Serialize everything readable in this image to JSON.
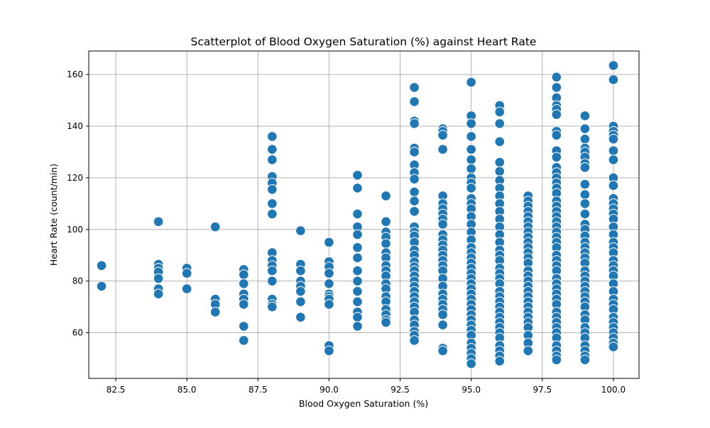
{
  "chart_data": {
    "type": "scatter",
    "title": "Scatterplot of Blood Oxygen Saturation (%) against Heart Rate",
    "xlabel": "Blood Oxygen Saturation (%)",
    "ylabel": "Heart Rate (count/min)",
    "xlim": [
      81.55,
      100.9
    ],
    "ylim": [
      42.3,
      169.1
    ],
    "grid": true,
    "x_ticks": [
      82.5,
      85.0,
      87.5,
      90.0,
      92.5,
      95.0,
      97.5,
      100.0
    ],
    "x_tick_labels": [
      "82.5",
      "85.0",
      "87.5",
      "90.0",
      "92.5",
      "95.0",
      "97.5",
      "100.0"
    ],
    "y_ticks": [
      60,
      80,
      100,
      120,
      140,
      160
    ],
    "y_tick_labels": [
      "60",
      "80",
      "100",
      "120",
      "140",
      "160"
    ],
    "marker_color": "#1f77b4",
    "marker_edge_color": "#ffffff",
    "points": [
      {
        "x": 82,
        "y": 86
      },
      {
        "x": 82,
        "y": 78
      },
      {
        "x": 84,
        "y": 103
      },
      {
        "x": 84,
        "y": 86.5
      },
      {
        "x": 84,
        "y": 85
      },
      {
        "x": 84,
        "y": 83.5
      },
      {
        "x": 84,
        "y": 81
      },
      {
        "x": 84,
        "y": 77
      },
      {
        "x": 84,
        "y": 75
      },
      {
        "x": 85,
        "y": 85
      },
      {
        "x": 85,
        "y": 83
      },
      {
        "x": 85,
        "y": 77
      },
      {
        "x": 86,
        "y": 101
      },
      {
        "x": 86,
        "y": 73
      },
      {
        "x": 86,
        "y": 71
      },
      {
        "x": 86,
        "y": 68
      },
      {
        "x": 87,
        "y": 84.5
      },
      {
        "x": 87,
        "y": 82.5
      },
      {
        "x": 87,
        "y": 79
      },
      {
        "x": 87,
        "y": 75
      },
      {
        "x": 87,
        "y": 73
      },
      {
        "x": 87,
        "y": 71
      },
      {
        "x": 87,
        "y": 62.5
      },
      {
        "x": 87,
        "y": 57
      },
      {
        "x": 88,
        "y": 136
      },
      {
        "x": 88,
        "y": 131
      },
      {
        "x": 88,
        "y": 127
      },
      {
        "x": 88,
        "y": 120.5
      },
      {
        "x": 88,
        "y": 118
      },
      {
        "x": 88,
        "y": 115.5
      },
      {
        "x": 88,
        "y": 110
      },
      {
        "x": 88,
        "y": 106
      },
      {
        "x": 88,
        "y": 91
      },
      {
        "x": 88,
        "y": 88
      },
      {
        "x": 88,
        "y": 86
      },
      {
        "x": 88,
        "y": 84
      },
      {
        "x": 88,
        "y": 80
      },
      {
        "x": 88,
        "y": 73
      },
      {
        "x": 88,
        "y": 71
      },
      {
        "x": 88,
        "y": 70
      },
      {
        "x": 89,
        "y": 99.5
      },
      {
        "x": 89,
        "y": 86.5
      },
      {
        "x": 89,
        "y": 84
      },
      {
        "x": 89,
        "y": 80
      },
      {
        "x": 89,
        "y": 78
      },
      {
        "x": 89,
        "y": 76
      },
      {
        "x": 89,
        "y": 72
      },
      {
        "x": 89,
        "y": 66
      },
      {
        "x": 90,
        "y": 95
      },
      {
        "x": 90,
        "y": 87.5
      },
      {
        "x": 90,
        "y": 85.5
      },
      {
        "x": 90,
        "y": 83
      },
      {
        "x": 90,
        "y": 79
      },
      {
        "x": 90,
        "y": 75
      },
      {
        "x": 90,
        "y": 74
      },
      {
        "x": 90,
        "y": 73
      },
      {
        "x": 90,
        "y": 71
      },
      {
        "x": 90,
        "y": 55
      },
      {
        "x": 90,
        "y": 53
      },
      {
        "x": 91,
        "y": 121
      },
      {
        "x": 91,
        "y": 116
      },
      {
        "x": 91,
        "y": 106
      },
      {
        "x": 91,
        "y": 101
      },
      {
        "x": 91,
        "y": 98
      },
      {
        "x": 91,
        "y": 93
      },
      {
        "x": 91,
        "y": 89
      },
      {
        "x": 91,
        "y": 84
      },
      {
        "x": 91,
        "y": 80
      },
      {
        "x": 91,
        "y": 76
      },
      {
        "x": 91,
        "y": 72
      },
      {
        "x": 91,
        "y": 68
      },
      {
        "x": 91,
        "y": 66
      },
      {
        "x": 91,
        "y": 62.5
      },
      {
        "x": 92,
        "y": 113
      },
      {
        "x": 92,
        "y": 103
      },
      {
        "x": 92,
        "y": 99
      },
      {
        "x": 92,
        "y": 97
      },
      {
        "x": 92,
        "y": 94.5
      },
      {
        "x": 92,
        "y": 91
      },
      {
        "x": 92,
        "y": 89
      },
      {
        "x": 92,
        "y": 86
      },
      {
        "x": 92,
        "y": 84
      },
      {
        "x": 92,
        "y": 82
      },
      {
        "x": 92,
        "y": 79
      },
      {
        "x": 92,
        "y": 77
      },
      {
        "x": 92,
        "y": 74
      },
      {
        "x": 92,
        "y": 72
      },
      {
        "x": 92,
        "y": 69
      },
      {
        "x": 92,
        "y": 67
      },
      {
        "x": 92,
        "y": 65
      },
      {
        "x": 92,
        "y": 64
      },
      {
        "x": 93,
        "y": 155
      },
      {
        "x": 93,
        "y": 149.5
      },
      {
        "x": 93,
        "y": 142
      },
      {
        "x": 93,
        "y": 141
      },
      {
        "x": 93,
        "y": 131.5
      },
      {
        "x": 93,
        "y": 130
      },
      {
        "x": 93,
        "y": 125
      },
      {
        "x": 93,
        "y": 122
      },
      {
        "x": 93,
        "y": 119.5
      },
      {
        "x": 93,
        "y": 114.5
      },
      {
        "x": 93,
        "y": 111
      },
      {
        "x": 93,
        "y": 107
      },
      {
        "x": 93,
        "y": 101
      },
      {
        "x": 93,
        "y": 99
      },
      {
        "x": 93,
        "y": 97.5
      },
      {
        "x": 93,
        "y": 95
      },
      {
        "x": 93,
        "y": 92
      },
      {
        "x": 93,
        "y": 90
      },
      {
        "x": 93,
        "y": 87.5
      },
      {
        "x": 93,
        "y": 85.5
      },
      {
        "x": 93,
        "y": 84
      },
      {
        "x": 93,
        "y": 82
      },
      {
        "x": 93,
        "y": 80
      },
      {
        "x": 93,
        "y": 78
      },
      {
        "x": 93,
        "y": 76
      },
      {
        "x": 93,
        "y": 74
      },
      {
        "x": 93,
        "y": 72
      },
      {
        "x": 93,
        "y": 70
      },
      {
        "x": 93,
        "y": 68
      },
      {
        "x": 93,
        "y": 65
      },
      {
        "x": 93,
        "y": 63
      },
      {
        "x": 93,
        "y": 60.5
      },
      {
        "x": 93,
        "y": 59
      },
      {
        "x": 93,
        "y": 57
      },
      {
        "x": 94,
        "y": 139
      },
      {
        "x": 94,
        "y": 138
      },
      {
        "x": 94,
        "y": 136.5
      },
      {
        "x": 94,
        "y": 131
      },
      {
        "x": 94,
        "y": 113
      },
      {
        "x": 94,
        "y": 110
      },
      {
        "x": 94,
        "y": 108
      },
      {
        "x": 94,
        "y": 106
      },
      {
        "x": 94,
        "y": 104
      },
      {
        "x": 94,
        "y": 102
      },
      {
        "x": 94,
        "y": 98
      },
      {
        "x": 94,
        "y": 96
      },
      {
        "x": 94,
        "y": 94
      },
      {
        "x": 94,
        "y": 92
      },
      {
        "x": 94,
        "y": 90
      },
      {
        "x": 94,
        "y": 88
      },
      {
        "x": 94,
        "y": 86
      },
      {
        "x": 94,
        "y": 84
      },
      {
        "x": 94,
        "y": 81
      },
      {
        "x": 94,
        "y": 78
      },
      {
        "x": 94,
        "y": 75
      },
      {
        "x": 94,
        "y": 73
      },
      {
        "x": 94,
        "y": 71
      },
      {
        "x": 94,
        "y": 69
      },
      {
        "x": 94,
        "y": 67
      },
      {
        "x": 94,
        "y": 63
      },
      {
        "x": 94,
        "y": 54
      },
      {
        "x": 94,
        "y": 53
      },
      {
        "x": 95,
        "y": 157
      },
      {
        "x": 95,
        "y": 144
      },
      {
        "x": 95,
        "y": 141
      },
      {
        "x": 95,
        "y": 136
      },
      {
        "x": 95,
        "y": 131
      },
      {
        "x": 95,
        "y": 127
      },
      {
        "x": 95,
        "y": 123.5
      },
      {
        "x": 95,
        "y": 120
      },
      {
        "x": 95,
        "y": 118
      },
      {
        "x": 95,
        "y": 116
      },
      {
        "x": 95,
        "y": 112
      },
      {
        "x": 95,
        "y": 110
      },
      {
        "x": 95,
        "y": 108
      },
      {
        "x": 95,
        "y": 105
      },
      {
        "x": 95,
        "y": 102
      },
      {
        "x": 95,
        "y": 99
      },
      {
        "x": 95,
        "y": 96
      },
      {
        "x": 95,
        "y": 93
      },
      {
        "x": 95,
        "y": 91
      },
      {
        "x": 95,
        "y": 89
      },
      {
        "x": 95,
        "y": 87
      },
      {
        "x": 95,
        "y": 85
      },
      {
        "x": 95,
        "y": 83
      },
      {
        "x": 95,
        "y": 81
      },
      {
        "x": 95,
        "y": 79
      },
      {
        "x": 95,
        "y": 77
      },
      {
        "x": 95,
        "y": 75
      },
      {
        "x": 95,
        "y": 73
      },
      {
        "x": 95,
        "y": 71
      },
      {
        "x": 95,
        "y": 69
      },
      {
        "x": 95,
        "y": 67
      },
      {
        "x": 95,
        "y": 65
      },
      {
        "x": 95,
        "y": 63
      },
      {
        "x": 95,
        "y": 61
      },
      {
        "x": 95,
        "y": 59
      },
      {
        "x": 95,
        "y": 56
      },
      {
        "x": 95,
        "y": 54
      },
      {
        "x": 95,
        "y": 52
      },
      {
        "x": 95,
        "y": 50
      },
      {
        "x": 95,
        "y": 48
      },
      {
        "x": 96,
        "y": 148
      },
      {
        "x": 96,
        "y": 145.5
      },
      {
        "x": 96,
        "y": 141
      },
      {
        "x": 96,
        "y": 134
      },
      {
        "x": 96,
        "y": 126
      },
      {
        "x": 96,
        "y": 122.5
      },
      {
        "x": 96,
        "y": 119
      },
      {
        "x": 96,
        "y": 116
      },
      {
        "x": 96,
        "y": 113
      },
      {
        "x": 96,
        "y": 110
      },
      {
        "x": 96,
        "y": 107
      },
      {
        "x": 96,
        "y": 104
      },
      {
        "x": 96,
        "y": 101
      },
      {
        "x": 96,
        "y": 98
      },
      {
        "x": 96,
        "y": 95
      },
      {
        "x": 96,
        "y": 92
      },
      {
        "x": 96,
        "y": 90
      },
      {
        "x": 96,
        "y": 88
      },
      {
        "x": 96,
        "y": 85
      },
      {
        "x": 96,
        "y": 83
      },
      {
        "x": 96,
        "y": 81
      },
      {
        "x": 96,
        "y": 79
      },
      {
        "x": 96,
        "y": 76
      },
      {
        "x": 96,
        "y": 74
      },
      {
        "x": 96,
        "y": 72
      },
      {
        "x": 96,
        "y": 70
      },
      {
        "x": 96,
        "y": 68
      },
      {
        "x": 96,
        "y": 66
      },
      {
        "x": 96,
        "y": 64
      },
      {
        "x": 96,
        "y": 62
      },
      {
        "x": 96,
        "y": 60
      },
      {
        "x": 96,
        "y": 58
      },
      {
        "x": 96,
        "y": 55
      },
      {
        "x": 96,
        "y": 53
      },
      {
        "x": 96,
        "y": 51
      },
      {
        "x": 96,
        "y": 49
      },
      {
        "x": 97,
        "y": 113
      },
      {
        "x": 97,
        "y": 111
      },
      {
        "x": 97,
        "y": 109
      },
      {
        "x": 97,
        "y": 107
      },
      {
        "x": 97,
        "y": 105
      },
      {
        "x": 97,
        "y": 103
      },
      {
        "x": 97,
        "y": 101
      },
      {
        "x": 97,
        "y": 99
      },
      {
        "x": 97,
        "y": 97
      },
      {
        "x": 97,
        "y": 95
      },
      {
        "x": 97,
        "y": 93
      },
      {
        "x": 97,
        "y": 91
      },
      {
        "x": 97,
        "y": 89
      },
      {
        "x": 97,
        "y": 87
      },
      {
        "x": 97,
        "y": 84
      },
      {
        "x": 97,
        "y": 82
      },
      {
        "x": 97,
        "y": 80
      },
      {
        "x": 97,
        "y": 78
      },
      {
        "x": 97,
        "y": 76
      },
      {
        "x": 97,
        "y": 74
      },
      {
        "x": 97,
        "y": 72
      },
      {
        "x": 97,
        "y": 70
      },
      {
        "x": 97,
        "y": 68
      },
      {
        "x": 97,
        "y": 66
      },
      {
        "x": 97,
        "y": 64
      },
      {
        "x": 97,
        "y": 62
      },
      {
        "x": 97,
        "y": 59
      },
      {
        "x": 97,
        "y": 56
      },
      {
        "x": 97,
        "y": 53
      },
      {
        "x": 98,
        "y": 159
      },
      {
        "x": 98,
        "y": 155
      },
      {
        "x": 98,
        "y": 151
      },
      {
        "x": 98,
        "y": 148
      },
      {
        "x": 98,
        "y": 146.5
      },
      {
        "x": 98,
        "y": 144.5
      },
      {
        "x": 98,
        "y": 138
      },
      {
        "x": 98,
        "y": 136.5
      },
      {
        "x": 98,
        "y": 130.5
      },
      {
        "x": 98,
        "y": 128
      },
      {
        "x": 98,
        "y": 124
      },
      {
        "x": 98,
        "y": 122
      },
      {
        "x": 98,
        "y": 120
      },
      {
        "x": 98,
        "y": 118
      },
      {
        "x": 98,
        "y": 116
      },
      {
        "x": 98,
        "y": 114
      },
      {
        "x": 98,
        "y": 111
      },
      {
        "x": 98,
        "y": 109
      },
      {
        "x": 98,
        "y": 107
      },
      {
        "x": 98,
        "y": 105
      },
      {
        "x": 98,
        "y": 103
      },
      {
        "x": 98,
        "y": 101
      },
      {
        "x": 98,
        "y": 99
      },
      {
        "x": 98,
        "y": 97
      },
      {
        "x": 98,
        "y": 95
      },
      {
        "x": 98,
        "y": 93
      },
      {
        "x": 98,
        "y": 90
      },
      {
        "x": 98,
        "y": 88
      },
      {
        "x": 98,
        "y": 86
      },
      {
        "x": 98,
        "y": 84
      },
      {
        "x": 98,
        "y": 81
      },
      {
        "x": 98,
        "y": 79
      },
      {
        "x": 98,
        "y": 77
      },
      {
        "x": 98,
        "y": 75
      },
      {
        "x": 98,
        "y": 73
      },
      {
        "x": 98,
        "y": 71
      },
      {
        "x": 98,
        "y": 68
      },
      {
        "x": 98,
        "y": 66
      },
      {
        "x": 98,
        "y": 64
      },
      {
        "x": 98,
        "y": 62
      },
      {
        "x": 98,
        "y": 60
      },
      {
        "x": 98,
        "y": 58
      },
      {
        "x": 98,
        "y": 55
      },
      {
        "x": 98,
        "y": 53
      },
      {
        "x": 98,
        "y": 51
      },
      {
        "x": 98,
        "y": 49.5
      },
      {
        "x": 99,
        "y": 144
      },
      {
        "x": 99,
        "y": 139
      },
      {
        "x": 99,
        "y": 135
      },
      {
        "x": 99,
        "y": 131.5
      },
      {
        "x": 99,
        "y": 130
      },
      {
        "x": 99,
        "y": 128
      },
      {
        "x": 99,
        "y": 125.5
      },
      {
        "x": 99,
        "y": 124
      },
      {
        "x": 99,
        "y": 117.5
      },
      {
        "x": 99,
        "y": 113.5
      },
      {
        "x": 99,
        "y": 110
      },
      {
        "x": 99,
        "y": 106
      },
      {
        "x": 99,
        "y": 102
      },
      {
        "x": 99,
        "y": 100
      },
      {
        "x": 99,
        "y": 97.5
      },
      {
        "x": 99,
        "y": 95
      },
      {
        "x": 99,
        "y": 93
      },
      {
        "x": 99,
        "y": 91
      },
      {
        "x": 99,
        "y": 89
      },
      {
        "x": 99,
        "y": 87
      },
      {
        "x": 99,
        "y": 84
      },
      {
        "x": 99,
        "y": 82
      },
      {
        "x": 99,
        "y": 80
      },
      {
        "x": 99,
        "y": 78
      },
      {
        "x": 99,
        "y": 76
      },
      {
        "x": 99,
        "y": 74
      },
      {
        "x": 99,
        "y": 72
      },
      {
        "x": 99,
        "y": 70
      },
      {
        "x": 99,
        "y": 67
      },
      {
        "x": 99,
        "y": 65
      },
      {
        "x": 99,
        "y": 62
      },
      {
        "x": 99,
        "y": 60
      },
      {
        "x": 99,
        "y": 58
      },
      {
        "x": 99,
        "y": 55
      },
      {
        "x": 99,
        "y": 53
      },
      {
        "x": 99,
        "y": 51
      },
      {
        "x": 99,
        "y": 49.5
      },
      {
        "x": 100,
        "y": 163.5
      },
      {
        "x": 100,
        "y": 158
      },
      {
        "x": 100,
        "y": 140
      },
      {
        "x": 100,
        "y": 138
      },
      {
        "x": 100,
        "y": 136.5
      },
      {
        "x": 100,
        "y": 135
      },
      {
        "x": 100,
        "y": 130.5
      },
      {
        "x": 100,
        "y": 127
      },
      {
        "x": 100,
        "y": 120
      },
      {
        "x": 100,
        "y": 117
      },
      {
        "x": 100,
        "y": 112
      },
      {
        "x": 100,
        "y": 110
      },
      {
        "x": 100,
        "y": 108
      },
      {
        "x": 100,
        "y": 106
      },
      {
        "x": 100,
        "y": 104
      },
      {
        "x": 100,
        "y": 101
      },
      {
        "x": 100,
        "y": 98
      },
      {
        "x": 100,
        "y": 95
      },
      {
        "x": 100,
        "y": 93
      },
      {
        "x": 100,
        "y": 91
      },
      {
        "x": 100,
        "y": 88
      },
      {
        "x": 100,
        "y": 86
      },
      {
        "x": 100,
        "y": 84
      },
      {
        "x": 100,
        "y": 82
      },
      {
        "x": 100,
        "y": 79
      },
      {
        "x": 100,
        "y": 76
      },
      {
        "x": 100,
        "y": 73
      },
      {
        "x": 100,
        "y": 71
      },
      {
        "x": 100,
        "y": 69
      },
      {
        "x": 100,
        "y": 66
      },
      {
        "x": 100,
        "y": 64
      },
      {
        "x": 100,
        "y": 62
      },
      {
        "x": 100,
        "y": 60
      },
      {
        "x": 100,
        "y": 58
      },
      {
        "x": 100,
        "y": 56
      },
      {
        "x": 100,
        "y": 54.5
      }
    ]
  }
}
